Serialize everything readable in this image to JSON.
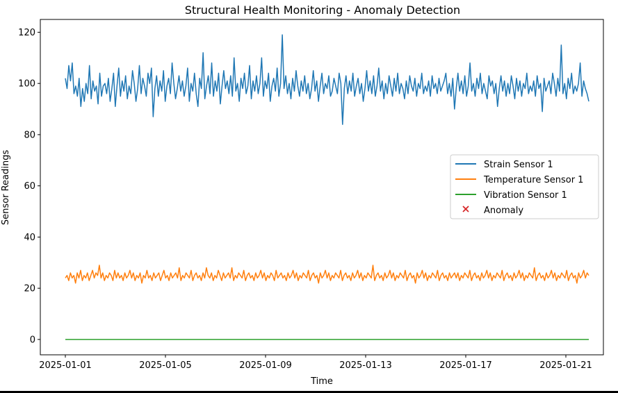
{
  "chart_data": {
    "type": "line",
    "title": "Structural Health Monitoring - Anomaly Detection",
    "xlabel": "Time",
    "ylabel": "Sensor Readings",
    "x_start": "2025-01-01",
    "x_end": "2025-01-21T22:00",
    "xlim": [
      "2024-12-31T00:00",
      "2025-01-22T12:00"
    ],
    "ylim": [
      -6,
      125
    ],
    "xticks": [
      "2025-01-01",
      "2025-01-05",
      "2025-01-09",
      "2025-01-13",
      "2025-01-17",
      "2025-01-21"
    ],
    "yticks": [
      0,
      20,
      40,
      60,
      80,
      100,
      120
    ],
    "grid": false,
    "legend_position": "center-right",
    "series": [
      {
        "name": "Strain Sensor 1",
        "color": "#1f77b4",
        "values": [
          102,
          98,
          107,
          101,
          108,
          96,
          99,
          95,
          102,
          91,
          98,
          93,
          100,
          96,
          107,
          94,
          101,
          97,
          99,
          92,
          104,
          95,
          99,
          100,
          96,
          102,
          93,
          98,
          104,
          91,
          99,
          106,
          95,
          101,
          97,
          103,
          94,
          99,
          96,
          105,
          100,
          93,
          98,
          107,
          96,
          102,
          99,
          95,
          104,
          100,
          106,
          87,
          98,
          103,
          95,
          101,
          97,
          105,
          93,
          99,
          102,
          96,
          108,
          100,
          94,
          98,
          103,
          97,
          101,
          95,
          99,
          106,
          93,
          100,
          97,
          104,
          96,
          91,
          102,
          98,
          112,
          94,
          99,
          103,
          96,
          108,
          95,
          101,
          97,
          104,
          92,
          99,
          105,
          98,
          101,
          96,
          103,
          95,
          110,
          97,
          100,
          93,
          102,
          98,
          104,
          96,
          99,
          107,
          94,
          101,
          97,
          103,
          96,
          100,
          110,
          95,
          101,
          98,
          104,
          93,
          99,
          102,
          97,
          106,
          95,
          100,
          119,
          98,
          103,
          96,
          100,
          94,
          102,
          97,
          105,
          99,
          95,
          101,
          97,
          103,
          96,
          100,
          94,
          98,
          105,
          97,
          101,
          93,
          99,
          104,
          96,
          100,
          98,
          103,
          95,
          97,
          102,
          99,
          96,
          104,
          100,
          84,
          98,
          103,
          96,
          101,
          97,
          104,
          95,
          99,
          102,
          96,
          100,
          93,
          98,
          105,
          97,
          101,
          96,
          103,
          95,
          99,
          106,
          97,
          101,
          94,
          100,
          96,
          103,
          99,
          95,
          102,
          97,
          104,
          96,
          100,
          98,
          94,
          101,
          96,
          103,
          99,
          97,
          102,
          95,
          100,
          98,
          104,
          96,
          99,
          97,
          101,
          95,
          103,
          98,
          100,
          96,
          102,
          97,
          99,
          101,
          104,
          96,
          100,
          95,
          102,
          90,
          98,
          104,
          97,
          101,
          96,
          103,
          95,
          99,
          108,
          97,
          100,
          95,
          102,
          98,
          104,
          96,
          100,
          97,
          94,
          103,
          99,
          101,
          96,
          100,
          91,
          98,
          103,
          97,
          101,
          95,
          100,
          96,
          103,
          99,
          94,
          102,
          97,
          101,
          95,
          100,
          98,
          104,
          96,
          99,
          97,
          101,
          95,
          103,
          98,
          100,
          89,
          102,
          97,
          99,
          101,
          96,
          104,
          100,
          95,
          102,
          97,
          115,
          96,
          100,
          94,
          102,
          98,
          104,
          96,
          99,
          97,
          100,
          108,
          95,
          101,
          98,
          96,
          93
        ]
      },
      {
        "name": "Temperature Sensor 1",
        "color": "#ff7f0e",
        "values": [
          24,
          25,
          23,
          26,
          24,
          25,
          22,
          26,
          24,
          27,
          23,
          25,
          24,
          26,
          23,
          25,
          27,
          24,
          26,
          25,
          29,
          24,
          26,
          23,
          25,
          24,
          26,
          25,
          23,
          27,
          24,
          26,
          24,
          25,
          23,
          26,
          24,
          25,
          27,
          24,
          26,
          23,
          25,
          24,
          26,
          22,
          25,
          24,
          27,
          24,
          25,
          23,
          26,
          24,
          25,
          26,
          23,
          25,
          27,
          24,
          25,
          23,
          26,
          24,
          25,
          26,
          24,
          28,
          23,
          25,
          24,
          26,
          25,
          24,
          27,
          23,
          25,
          26,
          24,
          25,
          23,
          26,
          24,
          28,
          25,
          24,
          26,
          23,
          25,
          24,
          27,
          25,
          23,
          26,
          24,
          25,
          26,
          24,
          28,
          23,
          25,
          24,
          26,
          25,
          24,
          27,
          23,
          25,
          26,
          24,
          25,
          23,
          26,
          24,
          25,
          27,
          24,
          26,
          23,
          25,
          24,
          26,
          25,
          23,
          27,
          24,
          25,
          26,
          24,
          25,
          23,
          26,
          24,
          25,
          27,
          24,
          26,
          23,
          25,
          24,
          26,
          25,
          24,
          27,
          23,
          25,
          26,
          24,
          25,
          22,
          26,
          24,
          25,
          27,
          24,
          26,
          23,
          25,
          24,
          26,
          25,
          24,
          27,
          23,
          25,
          26,
          24,
          25,
          23,
          26,
          24,
          25,
          27,
          24,
          26,
          23,
          25,
          24,
          26,
          25,
          24,
          29,
          23,
          25,
          26,
          24,
          25,
          23,
          26,
          24,
          25,
          27,
          24,
          26,
          23,
          25,
          24,
          26,
          25,
          24,
          27,
          23,
          25,
          26,
          24,
          25,
          22,
          26,
          24,
          25,
          27,
          24,
          26,
          23,
          25,
          24,
          26,
          25,
          24,
          27,
          23,
          25,
          26,
          24,
          25,
          23,
          26,
          24,
          25,
          26,
          24,
          26,
          23,
          25,
          24,
          26,
          25,
          24,
          27,
          23,
          25,
          26,
          24,
          25,
          23,
          26,
          24,
          25,
          27,
          24,
          26,
          23,
          25,
          24,
          26,
          25,
          24,
          27,
          23,
          25,
          26,
          24,
          25,
          23,
          26,
          24,
          25,
          27,
          24,
          26,
          23,
          25,
          24,
          26,
          25,
          24,
          28,
          23,
          25,
          26,
          24,
          25,
          23,
          26,
          24,
          25,
          27,
          24,
          26,
          23,
          25,
          24,
          26,
          25,
          24,
          27,
          23,
          25,
          26,
          24,
          25,
          22,
          26,
          24,
          25,
          27,
          24,
          26,
          25
        ]
      },
      {
        "name": "Vibration Sensor 1",
        "color": "#2ca02c",
        "values": [
          0,
          0
        ]
      }
    ],
    "anomaly": {
      "name": "Anomaly",
      "color": "#d62728",
      "marker": "x",
      "points": []
    }
  }
}
